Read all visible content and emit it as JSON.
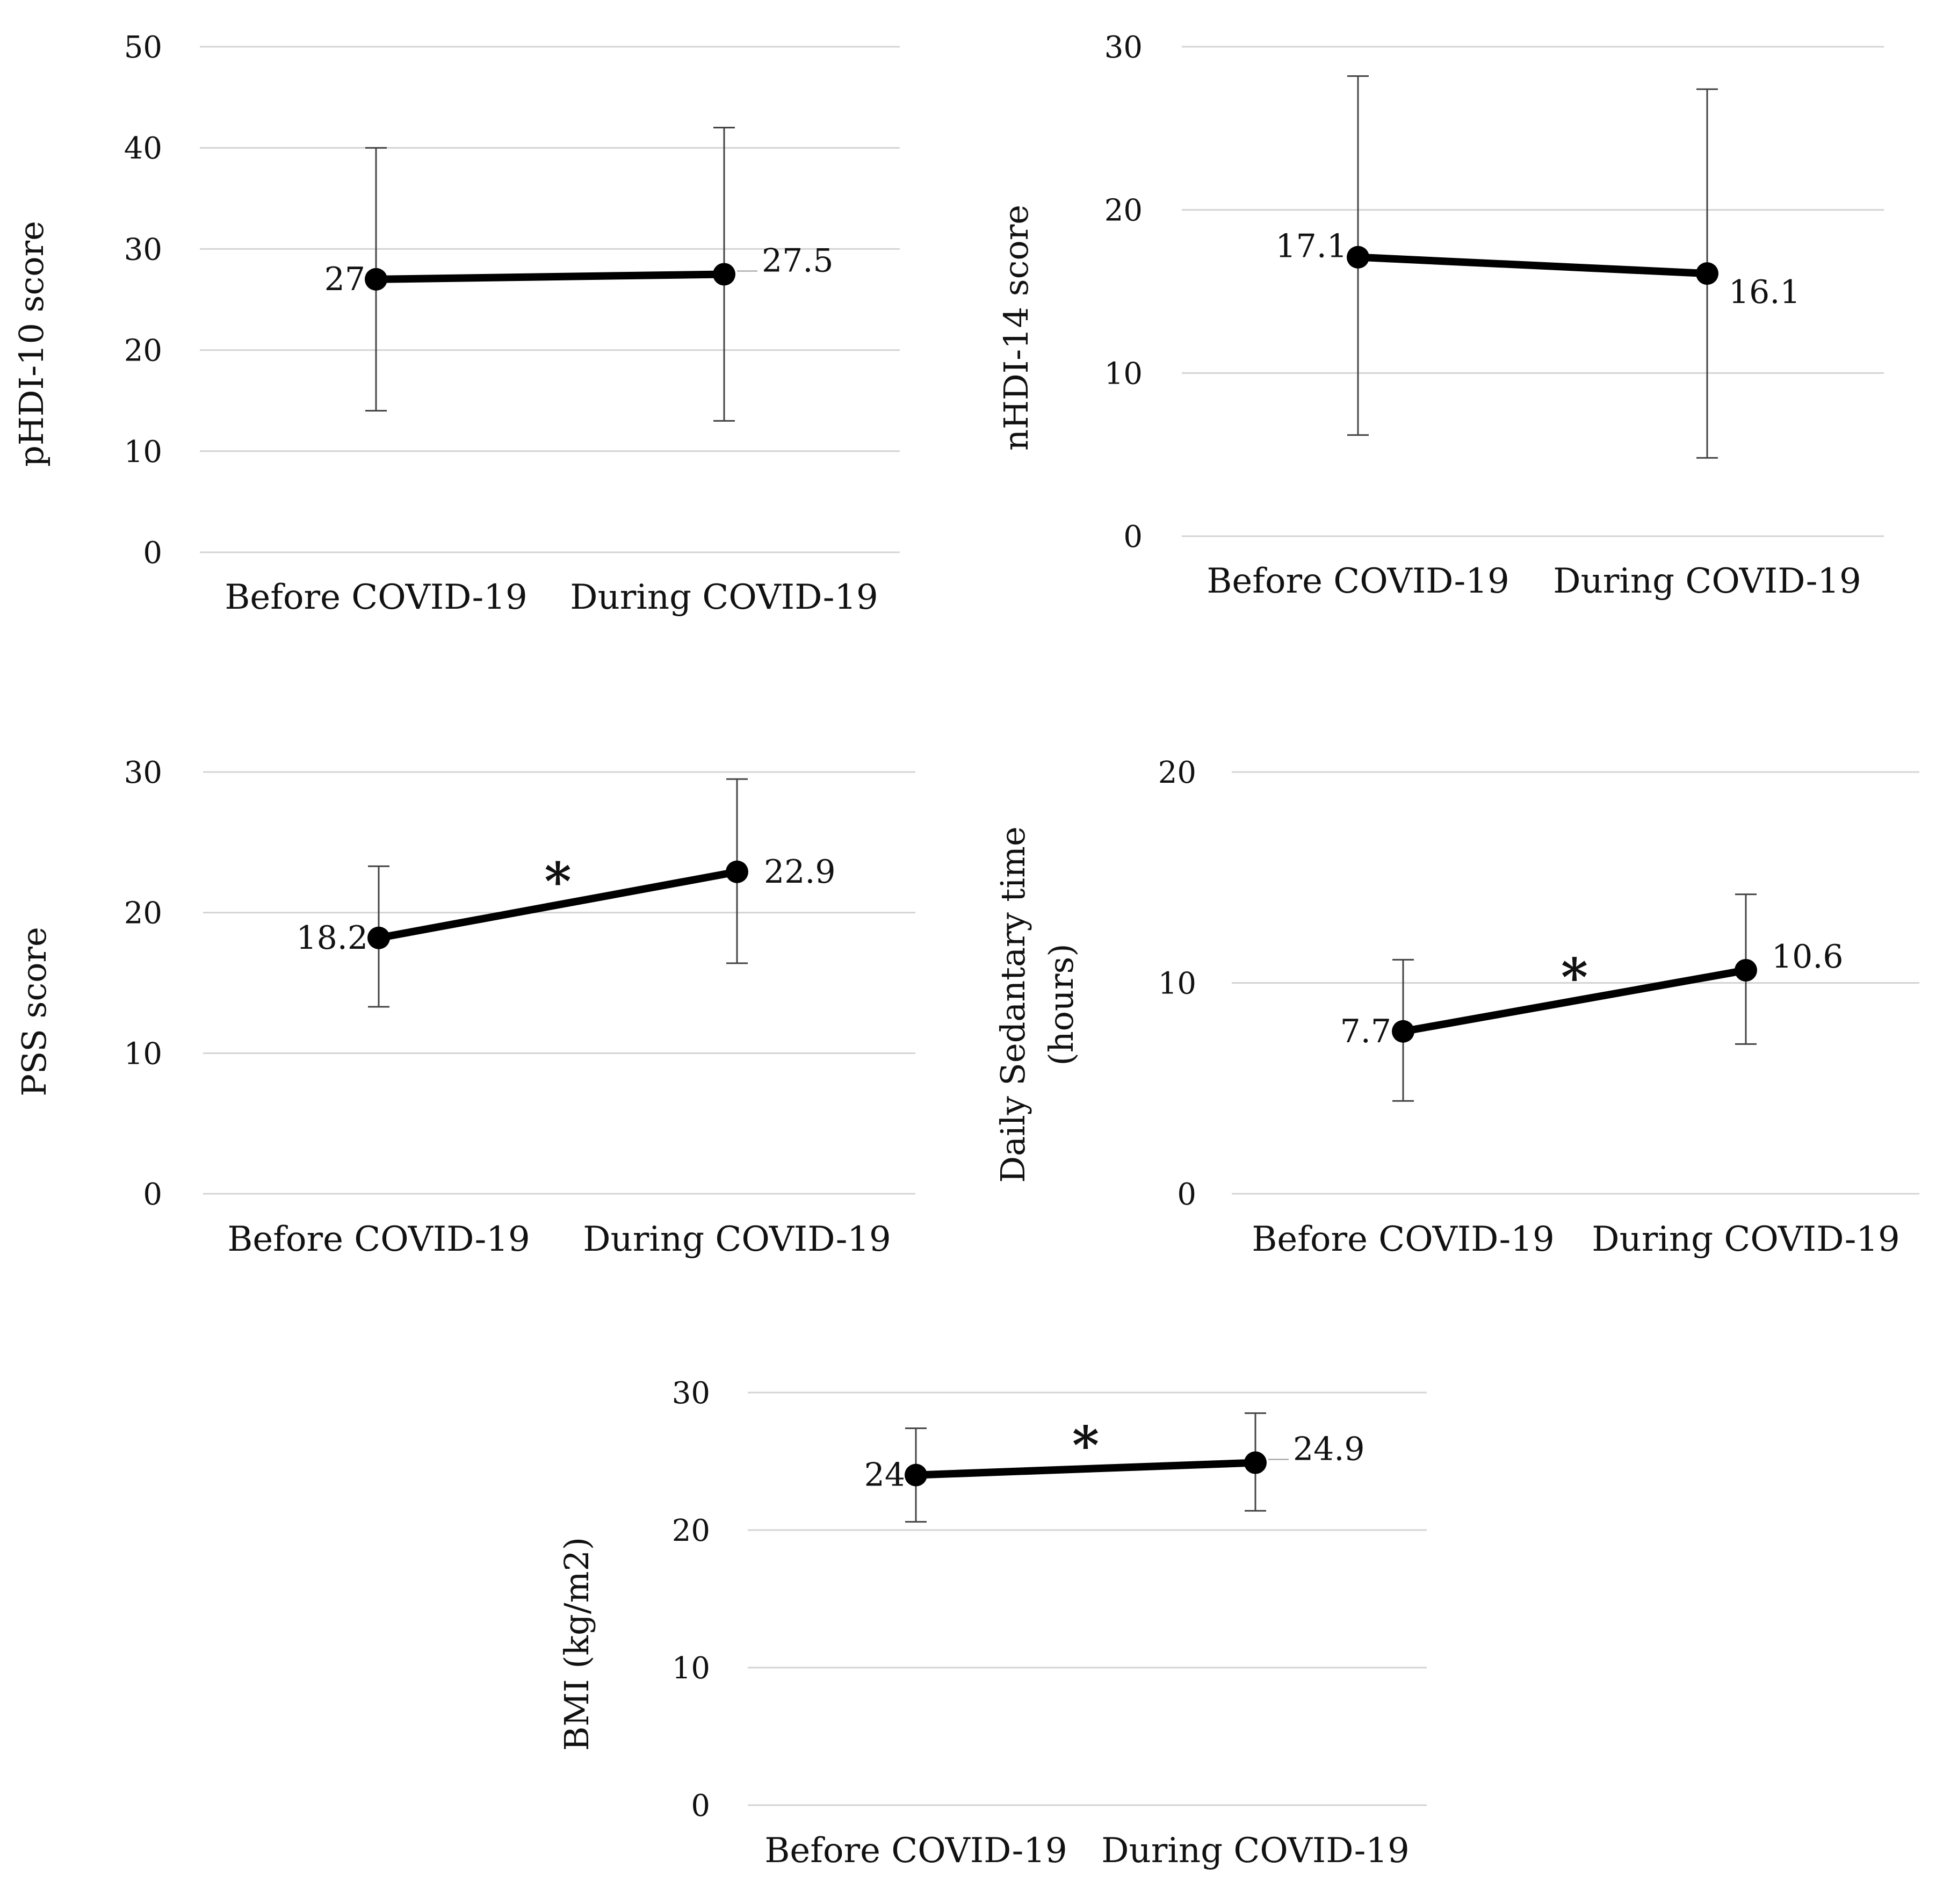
{
  "chart_data": [
    {
      "type": "line",
      "categories": [
        "Before COVID-19",
        "During COVID-19"
      ],
      "values": [
        27,
        27.5
      ],
      "data_labels": [
        "27",
        "27.5"
      ],
      "error_low": [
        14,
        13
      ],
      "error_high": [
        40,
        42
      ],
      "ylabel": "pHDI-10 score",
      "ylim": [
        0,
        50
      ],
      "yticks": [
        "0",
        "10",
        "20",
        "30",
        "40",
        "50"
      ],
      "significance": "",
      "grid": true
    },
    {
      "type": "line",
      "categories": [
        "Before COVID-19",
        "During COVID-19"
      ],
      "values": [
        17.1,
        16.1
      ],
      "data_labels": [
        "17.1",
        "16.1"
      ],
      "error_low": [
        6.2,
        4.8
      ],
      "error_high": [
        28.2,
        27.4
      ],
      "ylabel": "nHDI-14 score",
      "ylim": [
        0,
        30
      ],
      "yticks": [
        "0",
        "10",
        "20",
        "30"
      ],
      "significance": "",
      "grid": true
    },
    {
      "type": "line",
      "categories": [
        "Before COVID-19",
        "During COVID-19"
      ],
      "values": [
        18.2,
        22.9
      ],
      "data_labels": [
        "18.2",
        "22.9"
      ],
      "error_low": [
        13.3,
        16.4
      ],
      "error_high": [
        23.3,
        29.5
      ],
      "ylabel": "PSS score",
      "ylim": [
        0,
        30
      ],
      "yticks": [
        "0",
        "10",
        "20",
        "30"
      ],
      "significance": "*",
      "grid": true
    },
    {
      "type": "line",
      "categories": [
        "Before COVID-19",
        "During COVID-19"
      ],
      "values": [
        7.7,
        10.6
      ],
      "data_labels": [
        "7.7",
        "10.6"
      ],
      "error_low": [
        4.4,
        7.1
      ],
      "error_high": [
        11.1,
        14.2
      ],
      "ylabel": "Daily Sedantary time",
      "ylabel2": "(hours)",
      "ylim": [
        0,
        20
      ],
      "yticks": [
        "0",
        "10",
        "20"
      ],
      "significance": "*",
      "grid": true
    },
    {
      "type": "line",
      "categories": [
        "Before COVID-19",
        "During COVID-19"
      ],
      "values": [
        24,
        24.9
      ],
      "data_labels": [
        "24",
        "24.9"
      ],
      "error_low": [
        20.6,
        21.4
      ],
      "error_high": [
        27.4,
        28.5
      ],
      "ylabel": "BMI (kg/m2)",
      "ylim": [
        0,
        30
      ],
      "yticks": [
        "0",
        "10",
        "20",
        "30"
      ],
      "significance": "*",
      "grid": true
    }
  ]
}
